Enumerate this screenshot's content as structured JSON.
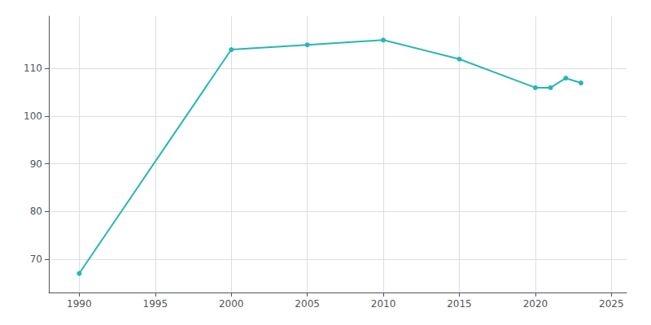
{
  "chart_data": {
    "type": "line",
    "x": [
      1990,
      2000,
      2005,
      2010,
      2015,
      2020,
      2021,
      2022,
      2023
    ],
    "values": [
      67,
      114,
      115,
      116,
      112,
      106,
      106,
      108,
      107
    ],
    "color": "#2ab5b5",
    "marker": "circle",
    "xlim": [
      1988,
      2026
    ],
    "ylim": [
      63,
      121
    ],
    "xticks": [
      1990,
      1995,
      2000,
      2005,
      2010,
      2015,
      2020,
      2025
    ],
    "yticks": [
      70,
      80,
      90,
      100,
      110
    ],
    "grid": true
  }
}
